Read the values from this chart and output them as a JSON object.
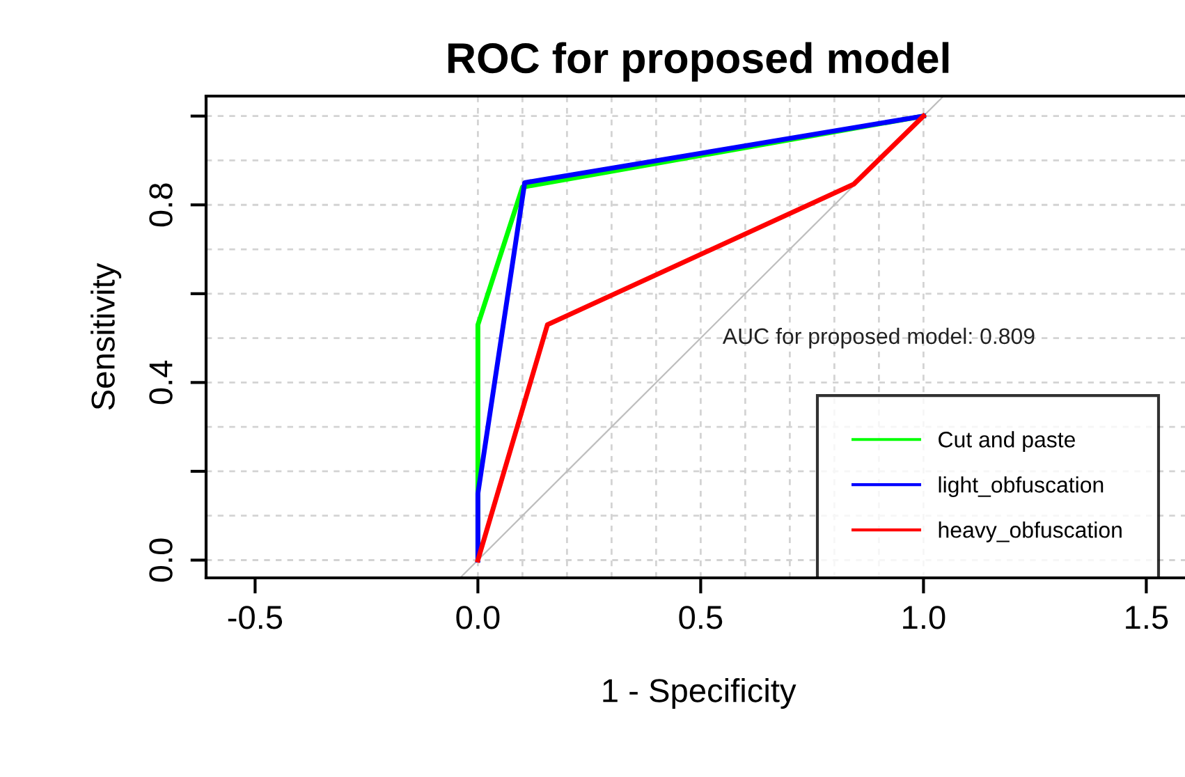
{
  "chart_data": {
    "type": "line",
    "title": "ROC for proposed model",
    "xlabel": "1 - Specificity",
    "ylabel": "Sensitivity",
    "xlim": [
      -0.61,
      1.6
    ],
    "ylim": [
      -0.04,
      1.045
    ],
    "xticks": [
      {
        "value": -0.5,
        "label": "-0.5"
      },
      {
        "value": 0,
        "label": "0.0"
      },
      {
        "value": 0.5,
        "label": "0.5"
      },
      {
        "value": 1,
        "label": "1.0"
      },
      {
        "value": 1.5,
        "label": "1.5"
      }
    ],
    "yticks": [
      {
        "value": 0,
        "label": "0.0"
      },
      {
        "value": 0.2,
        "label": null
      },
      {
        "value": 0.4,
        "label": "0.4"
      },
      {
        "value": 0.6,
        "label": null
      },
      {
        "value": 0.8,
        "label": "0.8"
      },
      {
        "value": 1.0,
        "label": null
      }
    ],
    "grid": true,
    "legend": "bottom right",
    "line_style": "solid",
    "marker": "none",
    "annotations": [
      "AUC for proposed model: 0.809"
    ],
    "series": [
      {
        "x": [
          -0.04,
          1.045
        ],
        "values": [
          -0.04,
          1.045
        ],
        "color": "#bebebe"
      },
      {
        "name": "Cut and paste",
        "color": "#00ff00",
        "x": [
          0,
          0,
          0.1,
          1
        ],
        "values": [
          0,
          0.53,
          0.84,
          1
        ]
      },
      {
        "name": "light_obfuscation",
        "color": "#0000ff",
        "x": [
          0,
          0,
          0.105,
          1
        ],
        "values": [
          0,
          0.15,
          0.85,
          1
        ]
      },
      {
        "name": "heavy_obfuscation",
        "color": "#ff0000",
        "x": [
          0,
          0.156,
          0.844,
          1
        ],
        "values": [
          0,
          0.53,
          0.847,
          1
        ]
      }
    ]
  }
}
